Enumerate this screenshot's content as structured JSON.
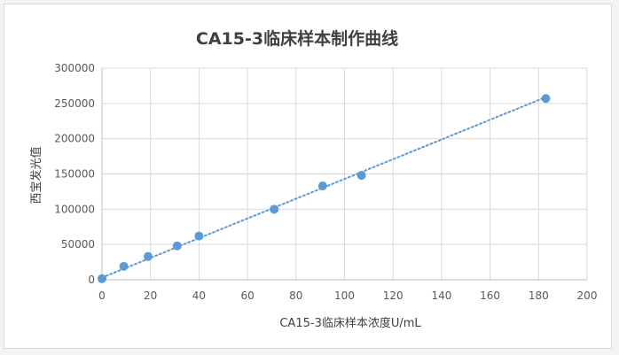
{
  "chart_data": {
    "type": "scatter",
    "title": "CA15-3临床样本制作曲线",
    "xlabel": "CA15-3临床样本浓度U/mL",
    "ylabel": "西宝发光值",
    "xlim": [
      0,
      200
    ],
    "ylim": [
      0,
      300000
    ],
    "x_ticks": [
      0,
      20,
      40,
      60,
      80,
      100,
      120,
      140,
      160,
      180,
      200
    ],
    "y_ticks": [
      0,
      50000,
      100000,
      150000,
      200000,
      250000,
      300000
    ],
    "grid": "horizontal",
    "series": [
      {
        "x": [
          0,
          9,
          19,
          31,
          40,
          71,
          91,
          107,
          183
        ],
        "y": [
          1500,
          19000,
          33000,
          48000,
          62000,
          100000,
          133000,
          148000,
          257000
        ]
      }
    ],
    "trendline": {
      "type": "linear",
      "style": "dotted",
      "x": [
        0,
        183
      ],
      "y": [
        3000,
        259000
      ]
    },
    "colors": {
      "marker": "#5b9bd5",
      "trendline": "#5b9bd5"
    }
  }
}
